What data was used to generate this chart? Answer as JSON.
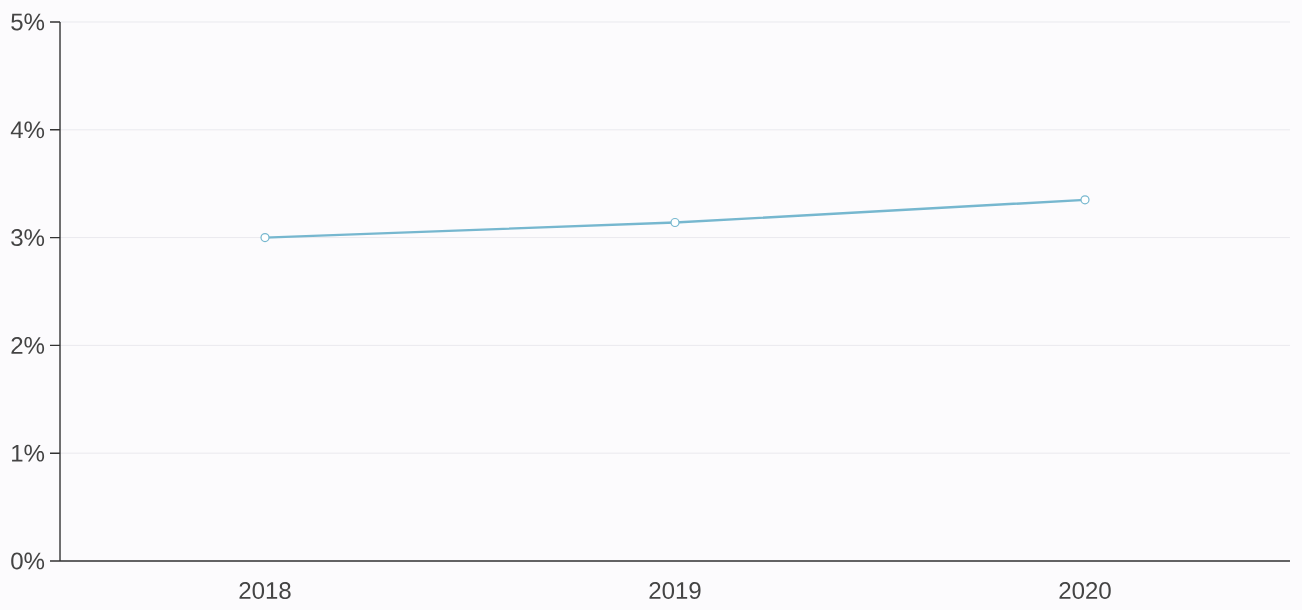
{
  "chart_data": {
    "type": "line",
    "categories": [
      "2018",
      "2019",
      "2020"
    ],
    "series": [
      {
        "color": "#76b7cf",
        "values": [
          3.0,
          3.14,
          3.35
        ]
      }
    ],
    "ylim": [
      0,
      5
    ],
    "yticks": [
      {
        "value": 0,
        "label": "0%"
      },
      {
        "value": 1,
        "label": "1%"
      },
      {
        "value": 2,
        "label": "2%"
      },
      {
        "value": 3,
        "label": "3%"
      },
      {
        "value": 4,
        "label": "4%"
      },
      {
        "value": 5,
        "label": "5%"
      }
    ],
    "grid": "y",
    "marker": "circle",
    "line_style": "solid"
  }
}
